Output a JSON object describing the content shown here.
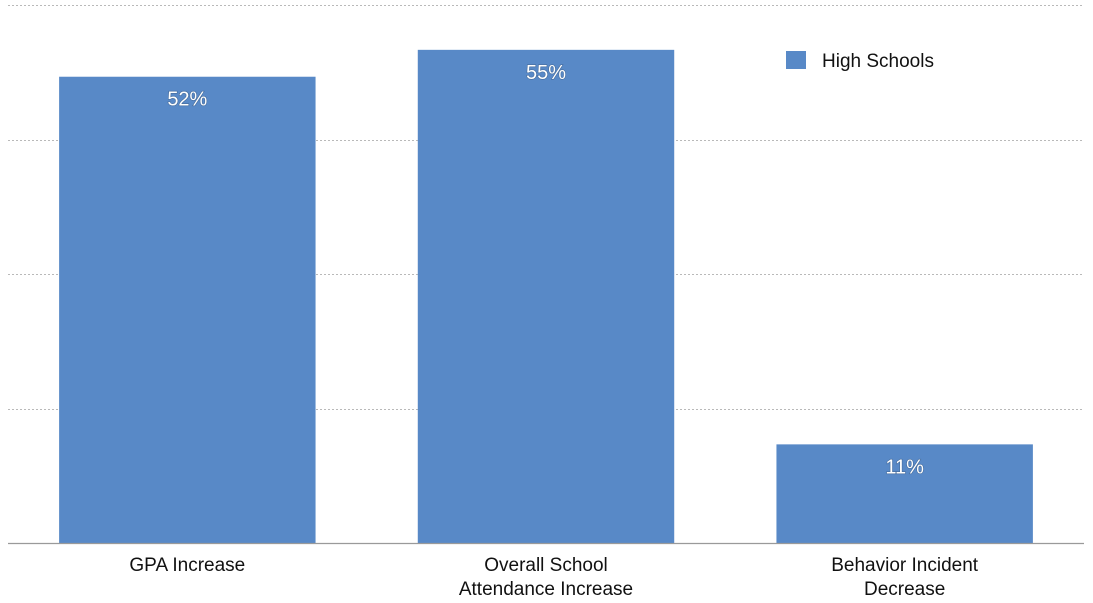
{
  "chart_data": {
    "type": "bar",
    "categories": [
      [
        "GPA Increase"
      ],
      [
        "Overall School",
        "Attendance Increase"
      ],
      [
        "Behavior Incident",
        "Decrease"
      ]
    ],
    "series": [
      {
        "name": "High Schools",
        "values": [
          52,
          55,
          11
        ],
        "labels": [
          "52%",
          "55%",
          "11%"
        ],
        "color": "#5889c7"
      }
    ],
    "ylim": [
      0,
      60
    ],
    "grid": true,
    "legend_position": "top-right"
  }
}
